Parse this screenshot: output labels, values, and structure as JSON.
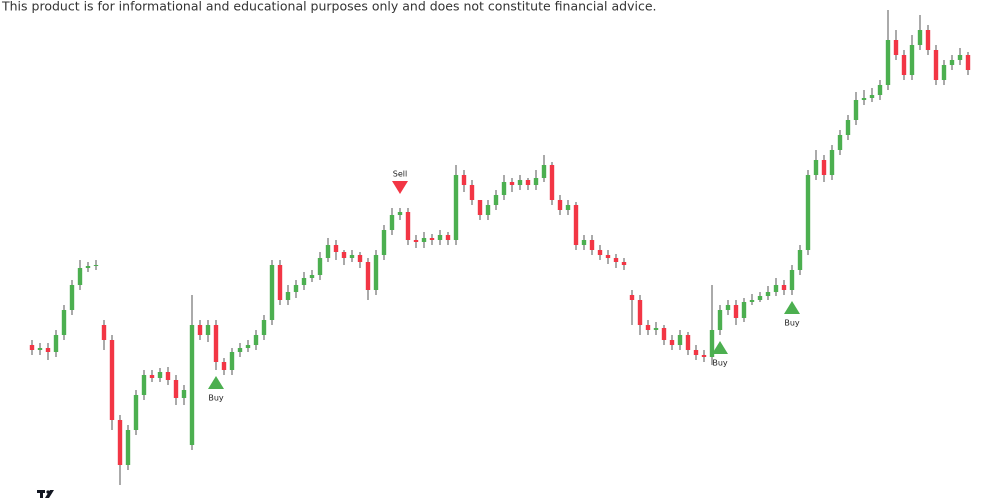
{
  "disclaimer": "This product is for informational and educational purposes only and does not constitute financial advice.",
  "chart_data": {
    "type": "candlestick",
    "up_color": "#4caf50",
    "down_color": "#f23645",
    "open": [
      155,
      150,
      152,
      148,
      165,
      190,
      215,
      232,
      234,
      175,
      160,
      80,
      35,
      70,
      105,
      125,
      122,
      128,
      120,
      102,
      55,
      175,
      165,
      175,
      138,
      130,
      148,
      152,
      155,
      165,
      180,
      235,
      200,
      208,
      215,
      222,
      225,
      242,
      255,
      248,
      242,
      245,
      238,
      210,
      245,
      270,
      285,
      288,
      260,
      258,
      262,
      260,
      265,
      260,
      325,
      315,
      300,
      285,
      295,
      305,
      318,
      315,
      320,
      315,
      322,
      335,
      300,
      290,
      295,
      255,
      260,
      250,
      245,
      242,
      238,
      205,
      200,
      175,
      170,
      172,
      160,
      155,
      165,
      150,
      145,
      143,
      170,
      190,
      195,
      182,
      198,
      200,
      204,
      208,
      215,
      210,
      230,
      250,
      325,
      340,
      325,
      350,
      365,
      380,
      400,
      402,
      405,
      415,
      460,
      445,
      425,
      455,
      470,
      450,
      420,
      435,
      440,
      445
    ],
    "high": [
      160,
      157,
      157,
      170,
      195,
      220,
      240,
      238,
      240,
      180,
      165,
      85,
      75,
      110,
      130,
      130,
      132,
      133,
      125,
      115,
      205,
      180,
      180,
      180,
      142,
      152,
      157,
      160,
      170,
      185,
      240,
      240,
      215,
      220,
      228,
      230,
      248,
      262,
      260,
      250,
      250,
      248,
      242,
      250,
      275,
      292,
      292,
      292,
      265,
      268,
      266,
      270,
      268,
      335,
      330,
      320,
      300,
      300,
      310,
      325,
      322,
      325,
      322,
      330,
      345,
      338,
      305,
      300,
      298,
      265,
      265,
      255,
      250,
      246,
      242,
      210,
      205,
      180,
      178,
      175,
      165,
      170,
      168,
      155,
      150,
      215,
      195,
      200,
      200,
      202,
      206,
      208,
      214,
      222,
      220,
      235,
      255,
      330,
      350,
      345,
      355,
      370,
      385,
      408,
      410,
      412,
      420,
      490,
      470,
      450,
      465,
      485,
      475,
      455,
      440,
      445,
      452,
      448
    ],
    "low": [
      145,
      145,
      140,
      143,
      160,
      185,
      210,
      228,
      230,
      150,
      70,
      15,
      30,
      65,
      100,
      118,
      118,
      115,
      95,
      95,
      50,
      160,
      158,
      130,
      125,
      125,
      143,
      148,
      150,
      160,
      175,
      195,
      195,
      202,
      210,
      218,
      220,
      238,
      240,
      235,
      238,
      232,
      200,
      205,
      240,
      265,
      280,
      255,
      252,
      252,
      255,
      255,
      255,
      255,
      308,
      295,
      280,
      280,
      290,
      300,
      308,
      310,
      310,
      310,
      318,
      295,
      285,
      285,
      250,
      250,
      245,
      240,
      236,
      232,
      230,
      175,
      165,
      165,
      165,
      155,
      150,
      150,
      145,
      140,
      138,
      135,
      165,
      185,
      175,
      178,
      195,
      198,
      200,
      204,
      205,
      205,
      225,
      245,
      320,
      318,
      320,
      345,
      360,
      375,
      395,
      398,
      400,
      410,
      440,
      420,
      420,
      450,
      445,
      415,
      415,
      430,
      435,
      425
    ],
    "close": [
      150,
      152,
      148,
      165,
      190,
      215,
      232,
      234,
      235,
      160,
      80,
      35,
      70,
      105,
      125,
      122,
      128,
      120,
      102,
      110,
      175,
      165,
      175,
      138,
      130,
      148,
      152,
      155,
      165,
      180,
      235,
      200,
      208,
      215,
      222,
      225,
      242,
      255,
      248,
      242,
      245,
      238,
      210,
      245,
      270,
      285,
      288,
      260,
      258,
      262,
      260,
      265,
      260,
      325,
      315,
      300,
      285,
      295,
      305,
      318,
      315,
      320,
      315,
      322,
      335,
      300,
      290,
      295,
      255,
      260,
      250,
      245,
      242,
      238,
      235,
      200,
      175,
      170,
      172,
      160,
      155,
      165,
      150,
      145,
      143,
      170,
      190,
      195,
      182,
      198,
      200,
      204,
      208,
      215,
      210,
      230,
      250,
      325,
      340,
      325,
      350,
      365,
      380,
      400,
      402,
      405,
      415,
      460,
      445,
      425,
      455,
      470,
      450,
      420,
      435,
      440,
      445,
      430
    ],
    "signals": [
      null,
      null,
      null,
      null,
      null,
      null,
      null,
      null,
      null,
      null,
      null,
      null,
      null,
      null,
      null,
      null,
      null,
      null,
      null,
      null,
      null,
      null,
      null,
      "Buy",
      null,
      null,
      null,
      null,
      null,
      null,
      null,
      null,
      null,
      null,
      null,
      null,
      null,
      null,
      null,
      null,
      null,
      null,
      null,
      null,
      null,
      null,
      "Sell",
      null,
      null,
      null,
      null,
      null,
      null,
      null,
      null,
      null,
      null,
      null,
      null,
      null,
      null,
      null,
      null,
      null,
      null,
      null,
      null,
      null,
      null,
      null,
      null,
      null,
      null,
      null,
      null,
      null,
      null,
      null,
      null,
      null,
      null,
      null,
      null,
      null,
      null,
      null,
      "Buy",
      null,
      null,
      null,
      null,
      null,
      null,
      null,
      null,
      "Buy",
      null,
      null,
      null,
      null,
      null,
      null,
      null,
      null,
      null,
      null,
      null,
      null,
      null,
      null,
      null,
      null,
      null,
      null,
      null,
      null,
      null,
      null
    ]
  }
}
